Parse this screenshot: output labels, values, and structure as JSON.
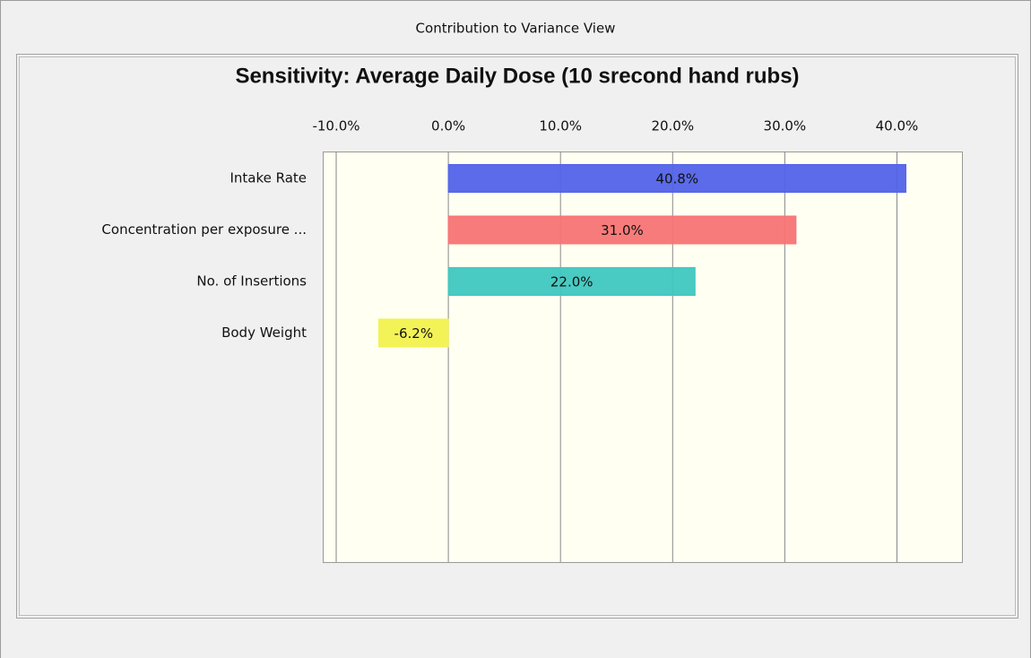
{
  "window": {
    "title": "Contribution to Variance View"
  },
  "chart_data": {
    "type": "bar",
    "title": "Sensitivity: Average Daily Dose (10 srecond hand rubs)",
    "categories": [
      "Intake Rate",
      "Concentration per exposure ...",
      "No. of Insertions",
      "Body Weight"
    ],
    "values": [
      40.8,
      31.0,
      22.0,
      -6.2
    ],
    "value_labels": [
      "40.8%",
      "31.0%",
      "22.0%",
      "-6.2%"
    ],
    "colors": [
      "#5263e8",
      "#f87474",
      "#3fc7bf",
      "#f2f24e"
    ],
    "xlim": [
      -11.2,
      45.8
    ],
    "xticks": [
      {
        "value": -10,
        "label": "-10.0%"
      },
      {
        "value": 0,
        "label": "0.0%"
      },
      {
        "value": 10,
        "label": "10.0%"
      },
      {
        "value": 20,
        "label": "20.0%"
      },
      {
        "value": 30,
        "label": "30.0%"
      },
      {
        "value": 40,
        "label": "40.0%"
      }
    ],
    "grid": true
  }
}
